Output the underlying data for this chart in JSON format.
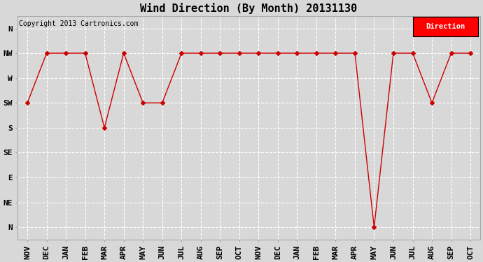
{
  "title": "Wind Direction (By Month) 20131130",
  "copyright": "Copyright 2013 Cartronics.com",
  "legend_label": "Direction",
  "legend_color": "#ff0000",
  "legend_text_color": "#ffffff",
  "x_labels": [
    "NOV",
    "DEC",
    "JAN",
    "FEB",
    "MAR",
    "APR",
    "MAY",
    "JUN",
    "JUL",
    "AUG",
    "SEP",
    "OCT",
    "NOV",
    "DEC",
    "JAN",
    "FEB",
    "MAR",
    "APR",
    "MAY",
    "JUN",
    "JUL",
    "AUG",
    "SEP",
    "OCT"
  ],
  "y_tick_positions": [
    0,
    1,
    2,
    3,
    4,
    5,
    6,
    7,
    8
  ],
  "y_tick_labels": [
    "N",
    "NW",
    "W",
    "SW",
    "S",
    "SE",
    "E",
    "NE",
    "N"
  ],
  "data_values": [
    3,
    1,
    1,
    1,
    4,
    1,
    3,
    3,
    1,
    1,
    1,
    1,
    1,
    1,
    1,
    1,
    1,
    1,
    8,
    1,
    1,
    3,
    1,
    1
  ],
  "line_color": "#cc0000",
  "marker": "D",
  "marker_size": 3,
  "background_color": "#d8d8d8",
  "grid_color": "#ffffff",
  "title_fontsize": 11,
  "axis_fontsize": 8,
  "figwidth": 6.9,
  "figheight": 3.75,
  "dpi": 100
}
